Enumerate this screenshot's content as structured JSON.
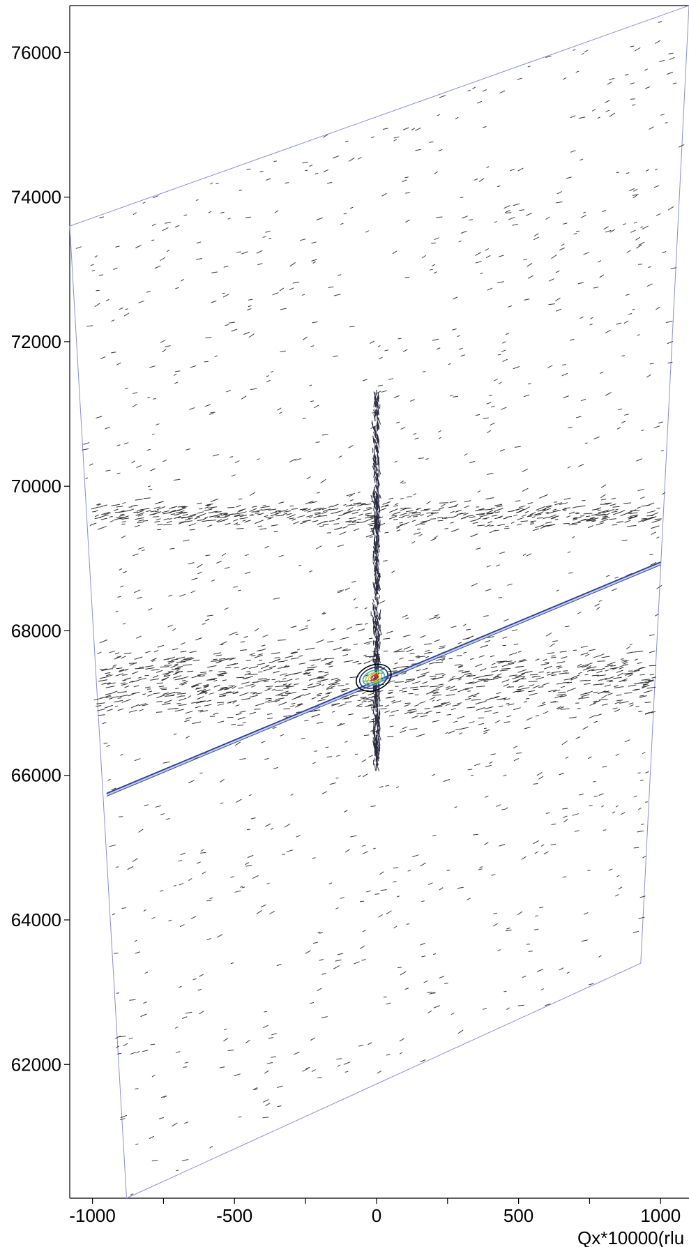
{
  "chart_data": {
    "type": "heatmap",
    "subtype": "reciprocal-space-map-contour",
    "title": "",
    "xlabel": "Qx*10000(rlu",
    "ylabel": "",
    "xlim": [
      -1080,
      1100
    ],
    "ylim": [
      60150,
      76650
    ],
    "x_ticks": [
      -1000,
      -500,
      0,
      500,
      1000
    ],
    "x_tick_labels": [
      "-1000",
      "-500",
      "0",
      "500",
      "1000"
    ],
    "y_ticks": [
      62000,
      64000,
      66000,
      68000,
      70000,
      72000,
      74000,
      76000
    ],
    "y_tick_labels": [
      "62000",
      "64000",
      "66000",
      "68000",
      "70000",
      "72000",
      "74000",
      "76000"
    ],
    "grid": false,
    "legend": "none",
    "scan_area": {
      "polygon": [
        [
          -1080,
          73600
        ],
        [
          -880,
          60150
        ],
        [
          930,
          63400
        ],
        [
          1100,
          76650
        ]
      ],
      "edge_color": "#8a8fd0"
    },
    "main_peak": {
      "x": -10,
      "y": 67350
    },
    "detector_streak": {
      "from": [
        -950,
        65750
      ],
      "to": [
        1000,
        68950
      ],
      "color": "#2a3f9a"
    },
    "vertical_streak": {
      "x": 0,
      "y_range": [
        66100,
        71300
      ]
    },
    "horizontal_bands": [
      {
        "y": 67300,
        "x_range": [
          -980,
          1000
        ]
      },
      {
        "y": 69600,
        "x_range": [
          -1000,
          1000
        ]
      }
    ],
    "contour_colors": [
      "#000000",
      "#1a2f8a",
      "#3bb3a0",
      "#9ad36a",
      "#f2c43a",
      "#e0302a"
    ]
  }
}
